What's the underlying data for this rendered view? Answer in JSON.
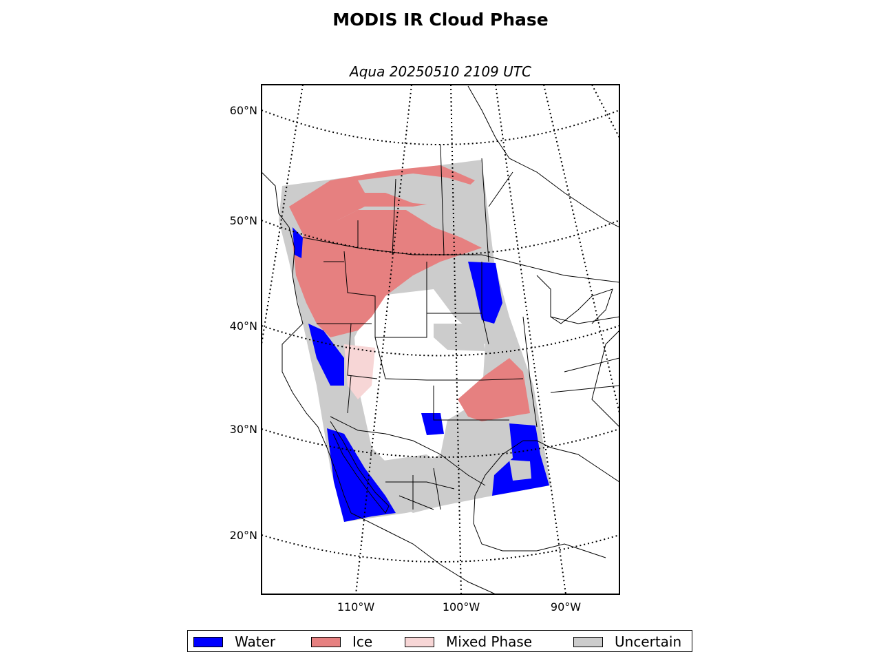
{
  "title": "MODIS IR Cloud Phase",
  "subtitle": "Aqua 20250510 2109 UTC",
  "lat_labels": [
    {
      "lat": 60,
      "label": "60°N"
    },
    {
      "lat": 50,
      "label": "50°N"
    },
    {
      "lat": 40,
      "label": "40°N"
    },
    {
      "lat": 30,
      "label": "30°N"
    },
    {
      "lat": 20,
      "label": "20°N"
    }
  ],
  "lon_labels": [
    {
      "lon": -110,
      "label": "110°W"
    },
    {
      "lon": -100,
      "label": "100°W"
    },
    {
      "lon": -90,
      "label": "90°W"
    }
  ],
  "legend": [
    {
      "label": "Water",
      "color": "#0000ff"
    },
    {
      "label": "Ice",
      "color": "#e68080"
    },
    {
      "label": "Mixed Phase",
      "color": "#f7d6d6"
    },
    {
      "label": "Uncertain",
      "color": "#cccccc"
    }
  ],
  "colors": {
    "water": "#0000ff",
    "ice": "#e68080",
    "mixed": "#f7d6d6",
    "uncertain": "#cccccc"
  }
}
